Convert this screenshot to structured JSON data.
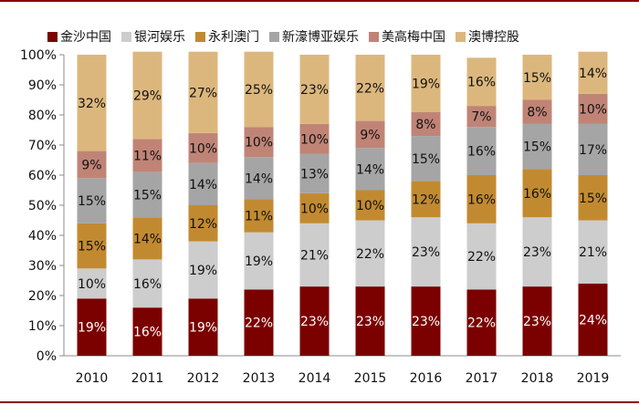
{
  "chart_data": {
    "type": "bar",
    "stacked": true,
    "categories": [
      "2010",
      "2011",
      "2012",
      "2013",
      "2014",
      "2015",
      "2016",
      "2017",
      "2018",
      "2019"
    ],
    "series": [
      {
        "name": "金沙中国",
        "color": "#7b0000",
        "label_color": "#ffffff",
        "values": [
          19,
          16,
          19,
          22,
          23,
          23,
          23,
          22,
          23,
          24
        ]
      },
      {
        "name": "银河娱乐",
        "color": "#cdcdcd",
        "label_color": "#111111",
        "values": [
          10,
          16,
          19,
          19,
          21,
          22,
          23,
          22,
          23,
          21
        ]
      },
      {
        "name": "永利澳门",
        "color": "#c28a30",
        "label_color": "#111111",
        "values": [
          15,
          14,
          12,
          11,
          10,
          10,
          12,
          16,
          16,
          15
        ]
      },
      {
        "name": "新濠博亚娱乐",
        "color": "#a5a5a5",
        "label_color": "#111111",
        "values": [
          15,
          15,
          14,
          14,
          13,
          14,
          15,
          16,
          15,
          17
        ]
      },
      {
        "name": "美高梅中国",
        "color": "#c08477",
        "label_color": "#111111",
        "values": [
          9,
          11,
          10,
          10,
          10,
          9,
          8,
          7,
          8,
          10
        ]
      },
      {
        "name": "澳博控股",
        "color": "#dcb77d",
        "label_color": "#111111",
        "values": [
          32,
          29,
          27,
          25,
          23,
          22,
          19,
          16,
          15,
          14
        ]
      }
    ],
    "ylim": [
      0,
      100
    ],
    "yticks": [
      "0%",
      "10%",
      "20%",
      "30%",
      "40%",
      "50%",
      "60%",
      "70%",
      "80%",
      "90%",
      "100%"
    ],
    "legend_position": "top",
    "grid": false
  }
}
